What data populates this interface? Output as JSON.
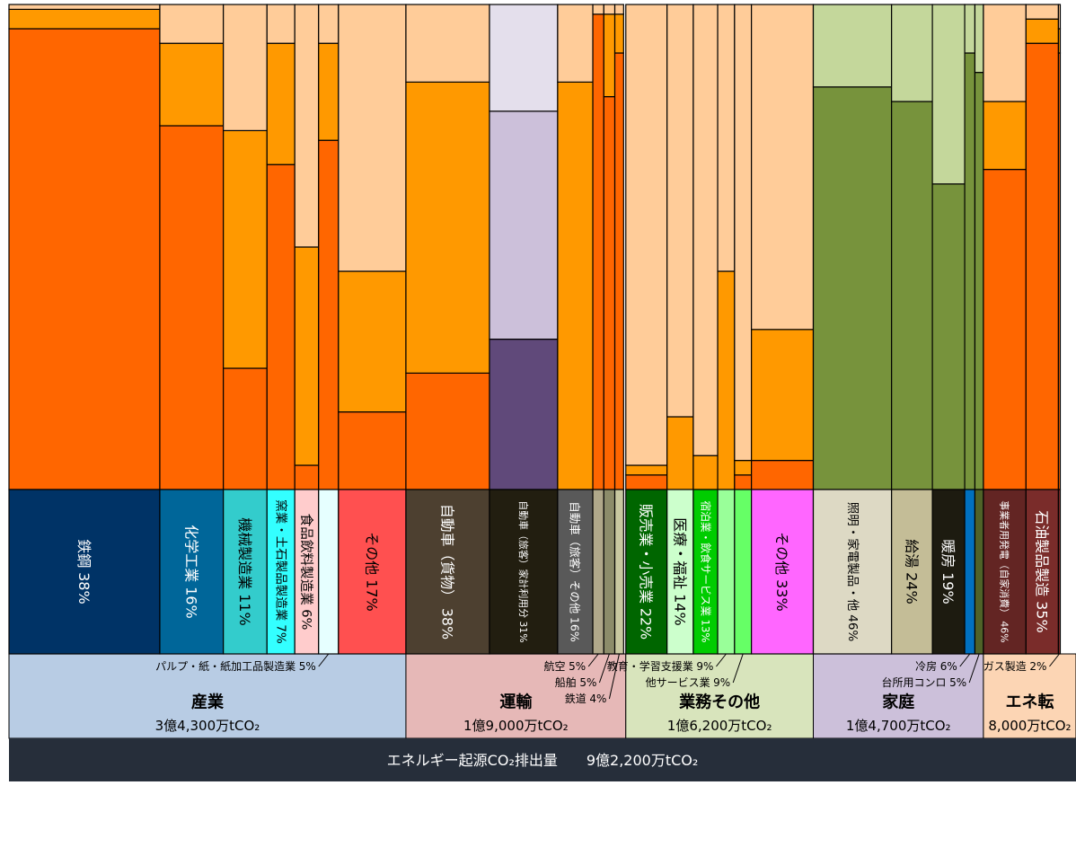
{
  "chart_data": {
    "type": "mosaic",
    "grid": false,
    "sectors": [
      {
        "name": "産業",
        "total": {
          "value": 343000000,
          "label": "3億4,300万tCO₂"
        },
        "color": "#b8cce4",
        "stack_colors": [
          "#ff6600",
          "#ff9900",
          "#ffcc99"
        ],
        "items": [
          {
            "name": "鉄鋼",
            "value": 38,
            "value_label": "38%",
            "color": "#003366",
            "stack": [
              95,
              4,
              1
            ]
          },
          {
            "name": "化学工業",
            "value": 16,
            "value_label": "16%",
            "color": "#006699",
            "stack": [
              75,
              17,
              8
            ]
          },
          {
            "name": "機械製造業",
            "value": 11,
            "value_label": "11%",
            "color": "#33cccc",
            "stack": [
              25,
              49,
              26
            ]
          },
          {
            "name": "窯業・土石製品製造業",
            "value": 7,
            "value_label": "7%",
            "color": "#33ffff",
            "stack": [
              67,
              25,
              8
            ]
          },
          {
            "name": "食品飲料製造業",
            "value": 6,
            "value_label": "6%",
            "color": "#ffcccc",
            "stack": [
              5,
              45,
              50
            ]
          },
          {
            "name": "パルプ・紙・紙加工品製造業",
            "value": 5,
            "value_label": "5%",
            "color": "#e6ffff",
            "stack": [
              72,
              20,
              8
            ]
          },
          {
            "name": "その他",
            "value": 17,
            "value_label": "17%",
            "color": "#ff5050",
            "stack": [
              16,
              29,
              55
            ]
          }
        ]
      },
      {
        "name": "運輸",
        "total": {
          "value": 190000000,
          "label": "1億9,000万tCO₂"
        },
        "color": "#e6b8b7",
        "stack_colors": [
          "#ff6600",
          "#ff9900",
          "#ffcc99"
        ],
        "items": [
          {
            "name": "自動車（貨物）",
            "value": 38,
            "value_label": "38%",
            "color": "#4d4030",
            "stack": [
              24,
              60,
              16
            ]
          },
          {
            "name": "自動車（旅客）家計利用分",
            "value": 31,
            "value_label": "31%",
            "color": "#221e10",
            "stack": [
              31,
              47,
              22
            ],
            "stack_colors": [
              "#60497a",
              "#ccc0da",
              "#e4dfec"
            ]
          },
          {
            "name": "自動車（旅客）その他",
            "value": 16,
            "value_label": "16%",
            "color": "#595959",
            "stack": [
              0,
              84,
              16
            ]
          },
          {
            "name": "航空",
            "value": 5,
            "value_label": "5%",
            "color": "#b0a88a",
            "stack": [
              98,
              0,
              2
            ]
          },
          {
            "name": "船舶",
            "value": 5,
            "value_label": "5%",
            "color": "#8c8c6a",
            "stack": [
              81,
              17,
              2
            ]
          },
          {
            "name": "鉄道",
            "value": 4,
            "value_label": "4%",
            "color": "#c8c8a0",
            "stack": [
              90,
              8,
              2
            ]
          }
        ]
      },
      {
        "name": "業務その他",
        "total": {
          "value": 162000000,
          "label": "1億6,200万tCO₂"
        },
        "color": "#d8e4bc",
        "stack_colors": [
          "#ff6600",
          "#ff9900",
          "#ffcc99"
        ],
        "items": [
          {
            "name": "販売業・小売業",
            "value": 22,
            "value_label": "22%",
            "color": "#006600",
            "stack": [
              3,
              2,
              95
            ]
          },
          {
            "name": "医療・福祉",
            "value": 14,
            "value_label": "14%",
            "color": "#ccffcc",
            "stack": [
              0,
              15,
              85
            ]
          },
          {
            "name": "宿泊業・飲食サービス業",
            "value": 13,
            "value_label": "13%",
            "color": "#00cc00",
            "stack": [
              0,
              7,
              93
            ]
          },
          {
            "name": "教育・学習支援業",
            "value": 9,
            "value_label": "9%",
            "color": "#99ff99",
            "stack": [
              0,
              45,
              55
            ]
          },
          {
            "name": "他サービス業",
            "value": 9,
            "value_label": "9%",
            "color": "#66ff66",
            "stack": [
              3,
              3,
              94
            ]
          },
          {
            "name": "その他",
            "value": 33,
            "value_label": "33%",
            "color": "#ff66ff",
            "stack": [
              6,
              27,
              67
            ]
          }
        ]
      },
      {
        "name": "家庭",
        "total": {
          "value": 147000000,
          "label": "1億4,700万tCO₂"
        },
        "color": "#ccc0da",
        "stack_colors": [
          "#77933c",
          "#c4d79b"
        ],
        "items": [
          {
            "name": "照明・家電製品・他",
            "value": 46,
            "value_label": "46%",
            "color": "#ddd9c4",
            "stack": [
              83,
              17
            ]
          },
          {
            "name": "給湯",
            "value": 24,
            "value_label": "24%",
            "color": "#c4bd97",
            "stack": [
              80,
              20
            ]
          },
          {
            "name": "暖房",
            "value": 19,
            "value_label": "19%",
            "color": "#1d1b10",
            "stack": [
              63,
              37
            ]
          },
          {
            "name": "冷房",
            "value": 6,
            "value_label": "6%",
            "color": "#0070c0",
            "stack": [
              90,
              10
            ]
          },
          {
            "name": "台所用コンロ",
            "value": 5,
            "value_label": "5%",
            "color": "#4f6228",
            "stack": [
              86,
              14
            ]
          }
        ]
      },
      {
        "name": "エネ転",
        "total": {
          "value": 80000000,
          "label": "8,000万tCO₂"
        },
        "color": "#fcd5b4",
        "stack_colors": [
          "#ff6600",
          "#ff9900",
          "#ffcc99"
        ],
        "items": [
          {
            "name": "事業者用発電（自家消費）",
            "value": 46,
            "value_label": "46%",
            "color": "#632523",
            "stack": [
              66,
              14,
              20
            ]
          },
          {
            "name": "石油製品製造",
            "value": 35,
            "value_label": "35%",
            "color": "#7a2c2a",
            "stack": [
              92,
              5,
              3
            ]
          },
          {
            "name": "ガス製造",
            "value": 2,
            "value_label": "2%",
            "color": "#963634",
            "stack": [
              90,
              5,
              5
            ]
          }
        ]
      }
    ],
    "total_title": "エネルギー起源CO₂排出量",
    "total": {
      "value": 922000000,
      "label": "9億2,200万tCO₂"
    },
    "total_color": "#262e3a"
  }
}
